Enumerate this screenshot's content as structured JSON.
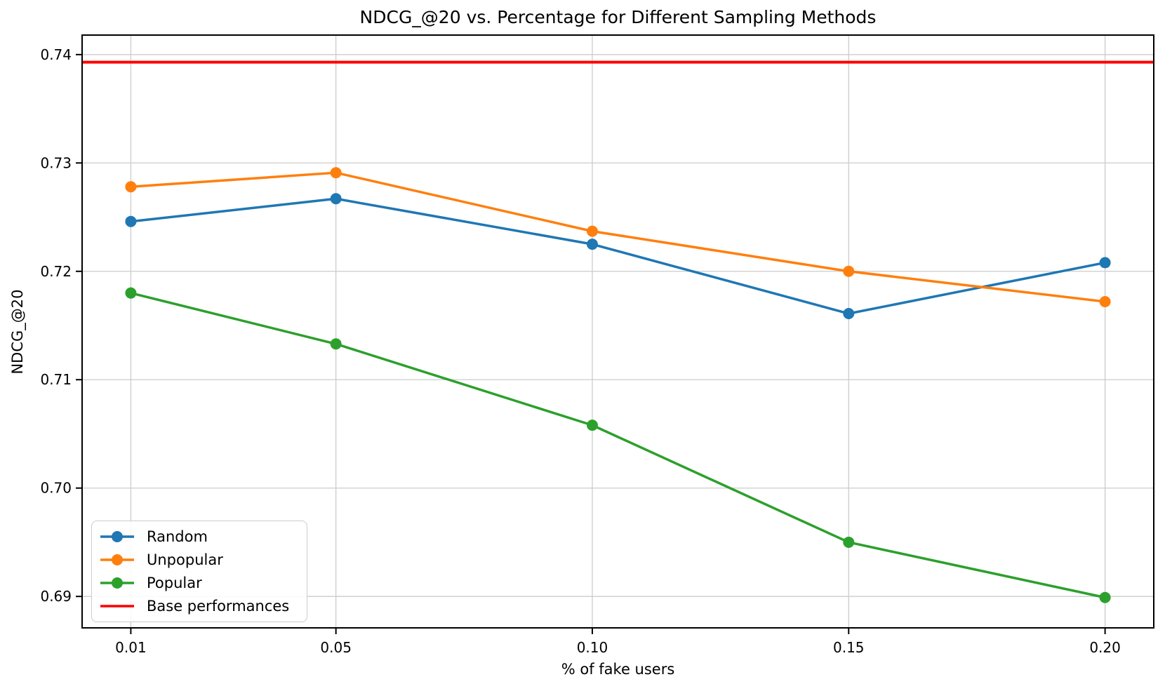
{
  "chart_data": {
    "type": "line",
    "title": "NDCG_@20 vs. Percentage for Different Sampling Methods",
    "xlabel": "% of fake users",
    "ylabel": "NDCG_@20",
    "x": [
      0.01,
      0.05,
      0.1,
      0.15,
      0.2
    ],
    "series": [
      {
        "name": "Random",
        "color": "#1f77b4",
        "marker": "circle",
        "values": [
          0.7246,
          0.7267,
          0.7225,
          0.7161,
          0.7208
        ]
      },
      {
        "name": "Unpopular",
        "color": "#ff7f0e",
        "marker": "circle",
        "values": [
          0.7278,
          0.7291,
          0.7237,
          0.72,
          0.7172
        ]
      },
      {
        "name": "Popular",
        "color": "#2ca02c",
        "marker": "circle",
        "values": [
          0.718,
          0.7133,
          0.7058,
          0.695,
          0.6899
        ]
      }
    ],
    "baseline": {
      "label": "Base performances",
      "color": "#ff0000",
      "value": 0.7393
    },
    "xticks": {
      "values": [
        0.01,
        0.05,
        0.1,
        0.15,
        0.2
      ],
      "labels": [
        "0.01",
        "0.05",
        "0.10",
        "0.15",
        "0.20"
      ]
    },
    "yticks": {
      "values": [
        0.69,
        0.7,
        0.71,
        0.72,
        0.73,
        0.74
      ],
      "labels": [
        "0.69",
        "0.70",
        "0.71",
        "0.72",
        "0.73",
        "0.74"
      ]
    },
    "xlim": [
      0.0005,
      0.2095
    ],
    "ylim": [
      0.6871,
      0.7418
    ],
    "grid": true,
    "grid_color": "#cccccc",
    "spine_color": "#000000",
    "legend_position": "lower left"
  }
}
